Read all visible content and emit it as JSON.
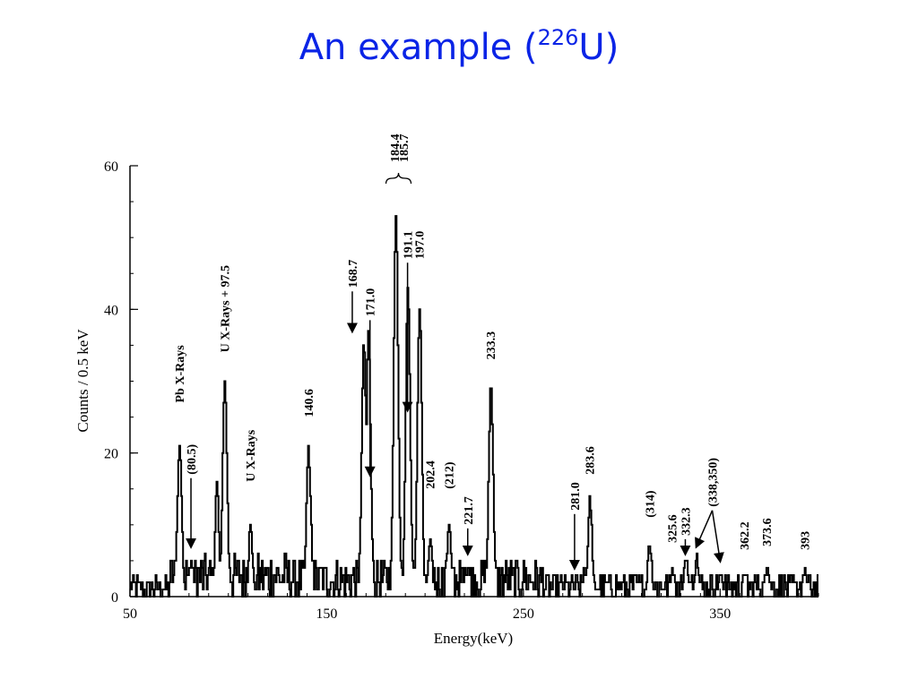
{
  "title": {
    "prefix": "An example (",
    "superscript": "226",
    "suffix": "U)"
  },
  "chart_data": {
    "type": "line",
    "title": "An example (226U)",
    "xlabel": "Energy(keV)",
    "ylabel": "Counts / 0.5 keV",
    "xlim": [
      50,
      400
    ],
    "ylim": [
      0,
      60
    ],
    "x_ticks": [
      50,
      150,
      250,
      350
    ],
    "y_ticks": [
      0,
      20,
      40,
      60
    ],
    "grid": false,
    "line_color": "#000000",
    "title_color": "#0a24e6",
    "peaks": [
      {
        "x": 75,
        "y": 23
      },
      {
        "x": 81,
        "y": 7
      },
      {
        "x": 94,
        "y": 18
      },
      {
        "x": 98,
        "y": 32
      },
      {
        "x": 111,
        "y": 12
      },
      {
        "x": 140.6,
        "y": 22
      },
      {
        "x": 168.7,
        "y": 37
      },
      {
        "x": 171.0,
        "y": 38
      },
      {
        "x": 185.0,
        "y": 55
      },
      {
        "x": 191.1,
        "y": 45
      },
      {
        "x": 197.0,
        "y": 42
      },
      {
        "x": 202.4,
        "y": 9
      },
      {
        "x": 212,
        "y": 12
      },
      {
        "x": 221.7,
        "y": 6
      },
      {
        "x": 233.3,
        "y": 31
      },
      {
        "x": 281.0,
        "y": 4
      },
      {
        "x": 283.6,
        "y": 15
      },
      {
        "x": 314,
        "y": 8
      },
      {
        "x": 325.6,
        "y": 5
      },
      {
        "x": 332.3,
        "y": 6
      },
      {
        "x": 338,
        "y": 6
      },
      {
        "x": 350,
        "y": 4
      },
      {
        "x": 362.2,
        "y": 4
      },
      {
        "x": 373.6,
        "y": 5
      },
      {
        "x": 393,
        "y": 4
      }
    ],
    "annotations": [
      {
        "text": "Pb X-Rays",
        "x": 75,
        "y": 27,
        "arrow": false
      },
      {
        "text": "(80.5)",
        "x": 81,
        "y": 17,
        "arrow": true,
        "target_y": 7
      },
      {
        "text": "U X-Rays + 97.5",
        "x": 98,
        "y": 34,
        "arrow": false
      },
      {
        "text": "U X-Rays",
        "x": 111,
        "y": 16,
        "arrow": false
      },
      {
        "text": "140.6",
        "x": 140.6,
        "y": 25,
        "arrow": false
      },
      {
        "text": "168.7",
        "x": 163,
        "y": 43,
        "arrow": true,
        "target_y": 37
      },
      {
        "text": "171.0",
        "x": 172,
        "y": 39,
        "arrow": true,
        "target_y": 17
      },
      {
        "text": "184.4",
        "x": 184.4,
        "y": 60.5,
        "arrow": false
      },
      {
        "text": "185.7",
        "x": 189,
        "y": 60.5,
        "arrow": false
      },
      {
        "text": "191.1",
        "x": 191.1,
        "y": 47,
        "arrow": true,
        "target_y": 26
      },
      {
        "text": "197.0",
        "x": 197,
        "y": 47,
        "arrow": false
      },
      {
        "text": "202.4",
        "x": 202.4,
        "y": 15,
        "arrow": false
      },
      {
        "text": "(212)",
        "x": 212,
        "y": 15,
        "arrow": false
      },
      {
        "text": "221.7",
        "x": 221.7,
        "y": 10,
        "arrow": true,
        "target_y": 6
      },
      {
        "text": "233.3",
        "x": 233.3,
        "y": 33,
        "arrow": false
      },
      {
        "text": "281.0",
        "x": 276,
        "y": 12,
        "arrow": true,
        "target_y": 4
      },
      {
        "text": "283.6",
        "x": 283.6,
        "y": 17,
        "arrow": false
      },
      {
        "text": "(314)",
        "x": 314,
        "y": 11,
        "arrow": false
      },
      {
        "text": "325.6",
        "x": 325.6,
        "y": 7.5,
        "arrow": false
      },
      {
        "text": "332.3",
        "x": 332.3,
        "y": 8.5,
        "arrow": true,
        "target_y": 6
      },
      {
        "text": "(338,350)",
        "x": 346,
        "y": 12.5,
        "arrow": true,
        "arrows": [
          {
            "target_x": 338,
            "target_y": 7
          },
          {
            "target_x": 350,
            "target_y": 5
          }
        ]
      },
      {
        "text": "362.2",
        "x": 362.2,
        "y": 6.5,
        "arrow": false
      },
      {
        "text": "373.6",
        "x": 373.6,
        "y": 7,
        "arrow": false
      },
      {
        "text": "393",
        "x": 393,
        "y": 6.5,
        "arrow": false
      }
    ]
  }
}
